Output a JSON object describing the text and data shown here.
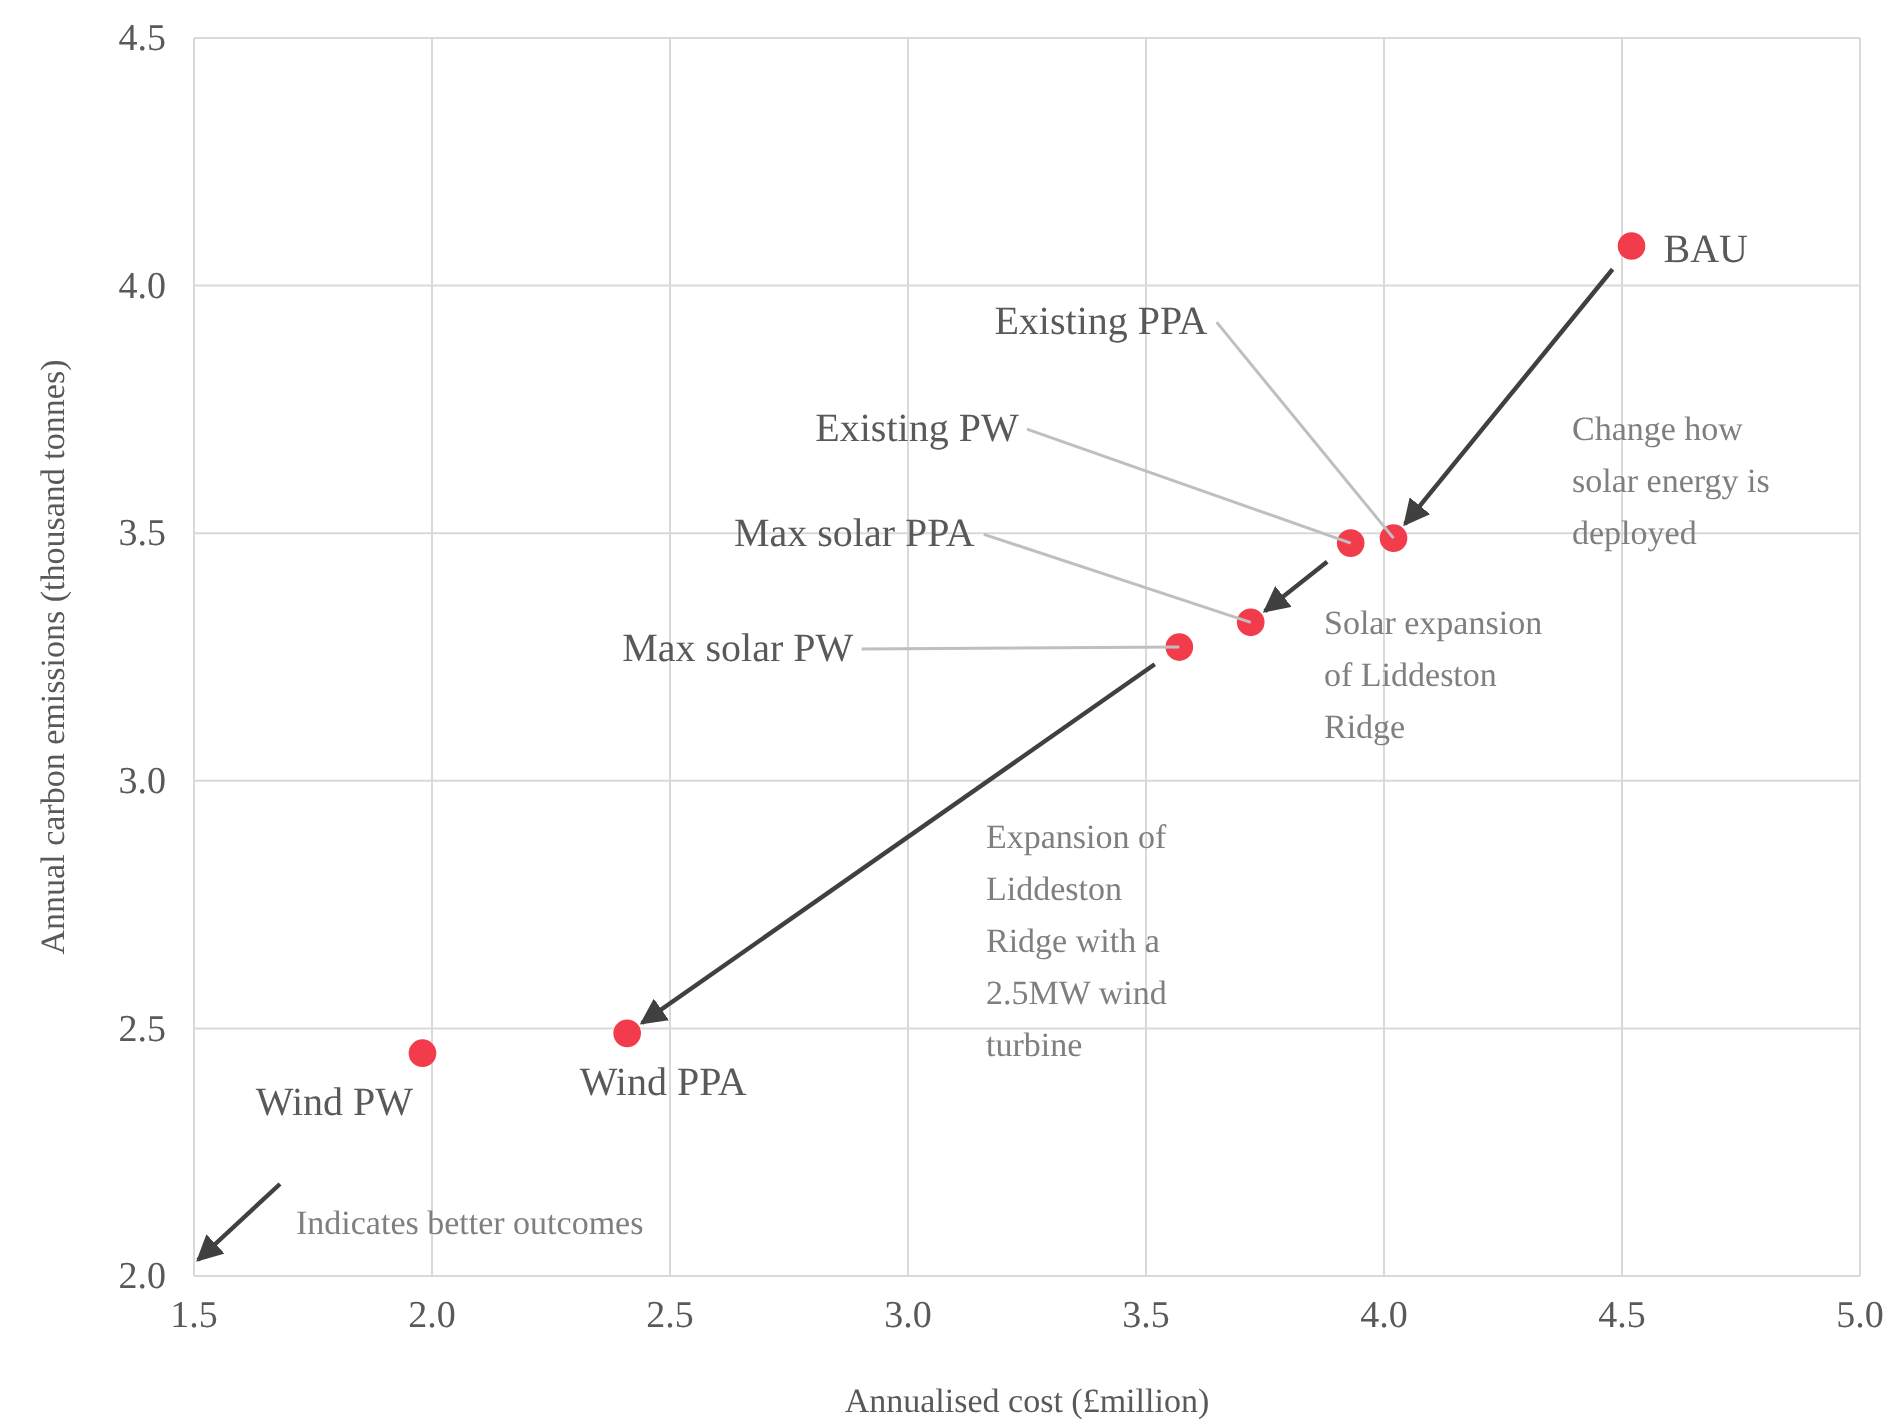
{
  "chart_data": {
    "type": "scatter",
    "xlabel": "Annualised cost (£million)",
    "ylabel": "Annual carbon emissions (thousand tonnes)",
    "xlim": [
      1.5,
      5.0
    ],
    "xticks": [
      1.5,
      {
        "value": 2,
        "label": "2.0"
      },
      2.5,
      {
        "value": 3,
        "label": "3.0"
      },
      3.5,
      {
        "value": 4,
        "label": "4.0"
      },
      4.5,
      {
        "value": 5,
        "label": "5.0"
      }
    ],
    "ylim": [
      2.0,
      4.5
    ],
    "yticks": [
      {
        "value": 2,
        "label": "2.0"
      },
      2.5,
      {
        "value": 3,
        "label": "3.0"
      },
      3.5,
      {
        "value": 4,
        "label": "4.0"
      },
      4.5
    ],
    "grid": true,
    "marker": "circle",
    "series": [
      {
        "color": "#f23c4c",
        "x": [
          4.52,
          4.02,
          3.93,
          3.72,
          3.57,
          2.41,
          1.98
        ],
        "values": [
          4.08,
          3.49,
          3.48,
          3.32,
          3.27,
          2.49,
          2.45
        ]
      }
    ],
    "annotations": [
      {
        "text": "BAU",
        "x": 4.52,
        "y": 4.08
      },
      {
        "text": "Existing PPA",
        "x": 4.02,
        "y": 3.49
      },
      {
        "text": "Existing PW",
        "x": 3.93,
        "y": 3.48
      },
      {
        "text": "Max solar PPA",
        "x": 3.72,
        "y": 3.32
      },
      {
        "text": "Max solar PW",
        "x": 3.57,
        "y": 3.27
      },
      {
        "text": "Wind PPA",
        "x": 2.41,
        "y": 2.49
      },
      {
        "text": "Wind PW",
        "x": 1.98,
        "y": 2.45
      },
      "Change how solar energy is deployed",
      "Solar expansion of Liddeston Ridge",
      "Expansion of Liddeston Ridge with a 2.5MW wind turbine",
      "Indicates better outcomes"
    ]
  }
}
